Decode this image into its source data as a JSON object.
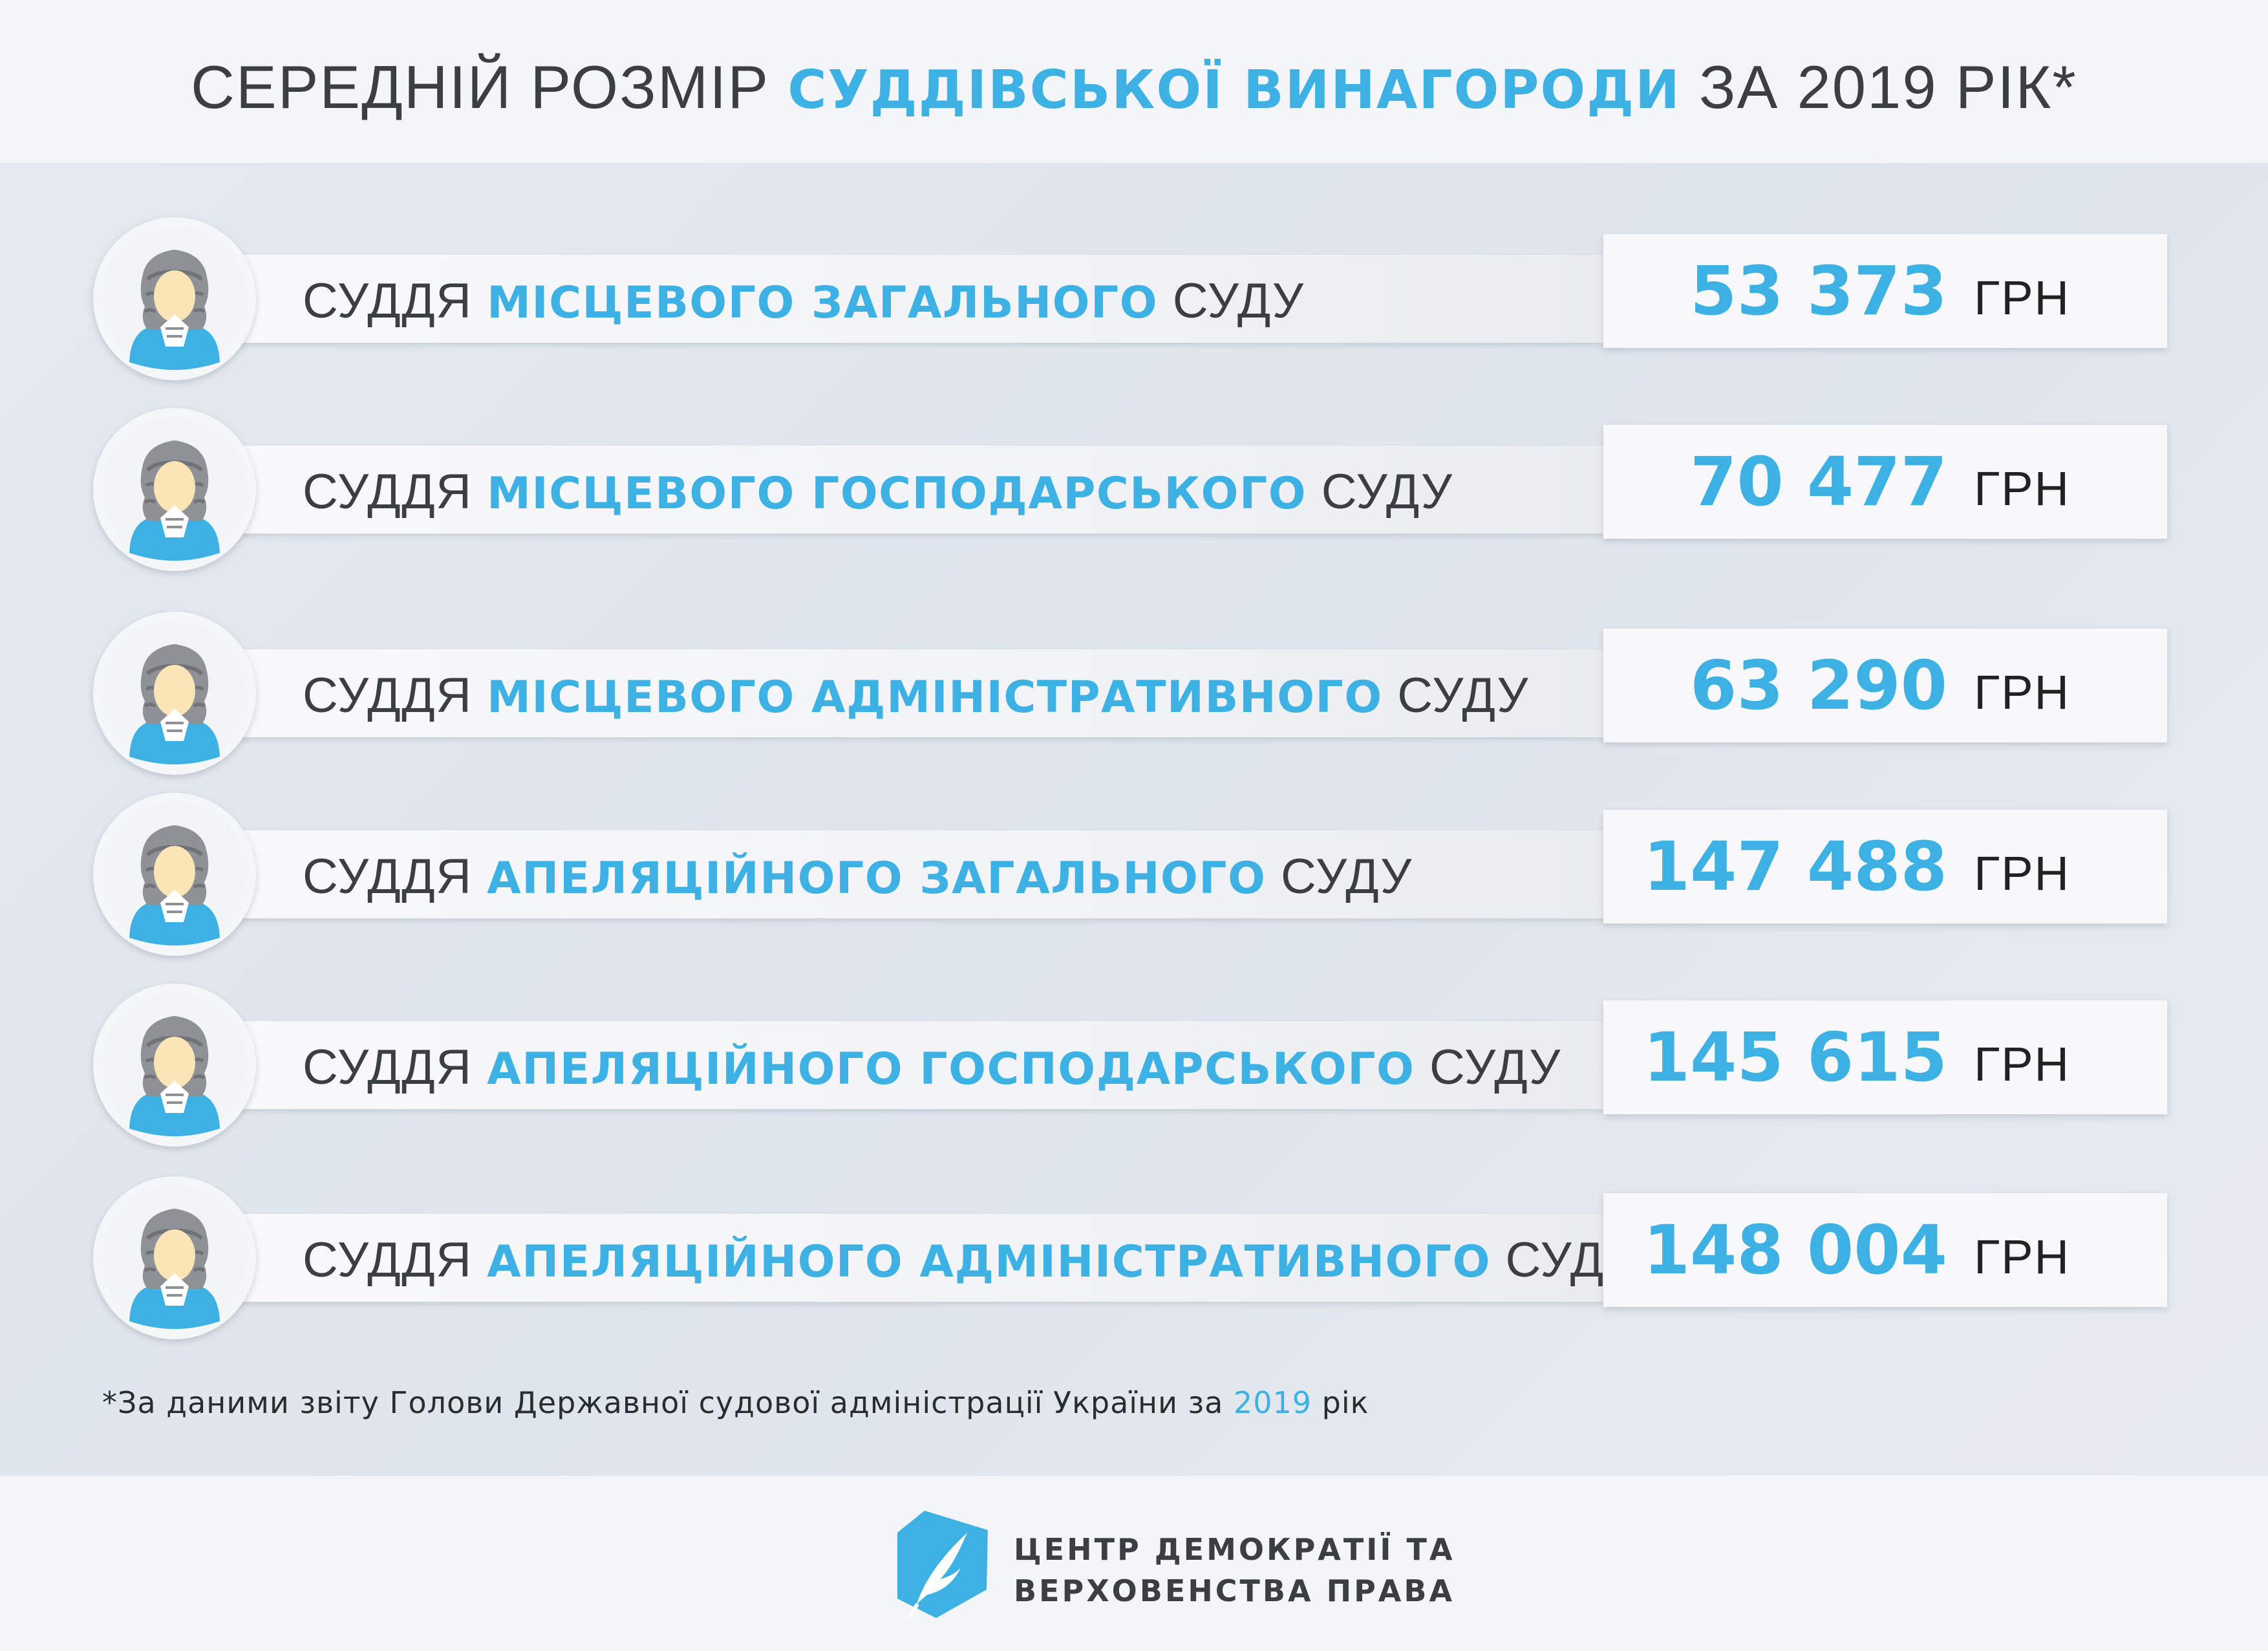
{
  "header": {
    "title_part1": "СЕРЕДНІЙ РОЗМІР ",
    "title_accent": "СУДДІВСЬКОЇ ВИНАГОРОДИ",
    "title_part2": " ЗА 2019 РІК*"
  },
  "colors": {
    "accent": "#3db1e3",
    "text": "#3b3f43",
    "background": "#e2e7ee"
  },
  "rows": [
    {
      "prefix": "СУДДЯ ",
      "accent": "МІСЦЕВОГО ЗАГАЛЬНОГО",
      "suffix": " СУДУ",
      "value": "53 373",
      "unit": "ГРН"
    },
    {
      "prefix": "СУДДЯ ",
      "accent": "МІСЦЕВОГО ГОСПОДАРСЬКОГО",
      "suffix": " СУДУ",
      "value": "70 477",
      "unit": "ГРН"
    },
    {
      "prefix": "СУДДЯ ",
      "accent": "МІСЦЕВОГО АДМІНІСТРАТИВНОГО",
      "suffix": " СУДУ",
      "value": "63 290",
      "unit": "ГРН"
    },
    {
      "prefix": "СУДДЯ ",
      "accent": "АПЕЛЯЦІЙНОГО ЗАГАЛЬНОГО",
      "suffix": " СУДУ",
      "value": "147 488",
      "unit": "ГРН"
    },
    {
      "prefix": "СУДДЯ ",
      "accent": "АПЕЛЯЦІЙНОГО ГОСПОДАРСЬКОГО",
      "suffix": " СУДУ",
      "value": "145 615",
      "unit": "ГРН"
    },
    {
      "prefix": "СУДДЯ ",
      "accent": "АПЕЛЯЦІЙНОГО АДМІНІСТРАТИВНОГО",
      "suffix": " СУДУ",
      "value": "148 004",
      "unit": "ГРН"
    }
  ],
  "footnote": {
    "text": "*За даними звіту Голови Державної судової адміністрації України за ",
    "accent": "2019",
    "end": " рік"
  },
  "logo": {
    "icon": "quill-feather-icon",
    "line1": "ЦЕНТР ДЕМОКРАТІЇ ТА",
    "line2": "ВЕРХОВЕНСТВА ПРАВА"
  }
}
